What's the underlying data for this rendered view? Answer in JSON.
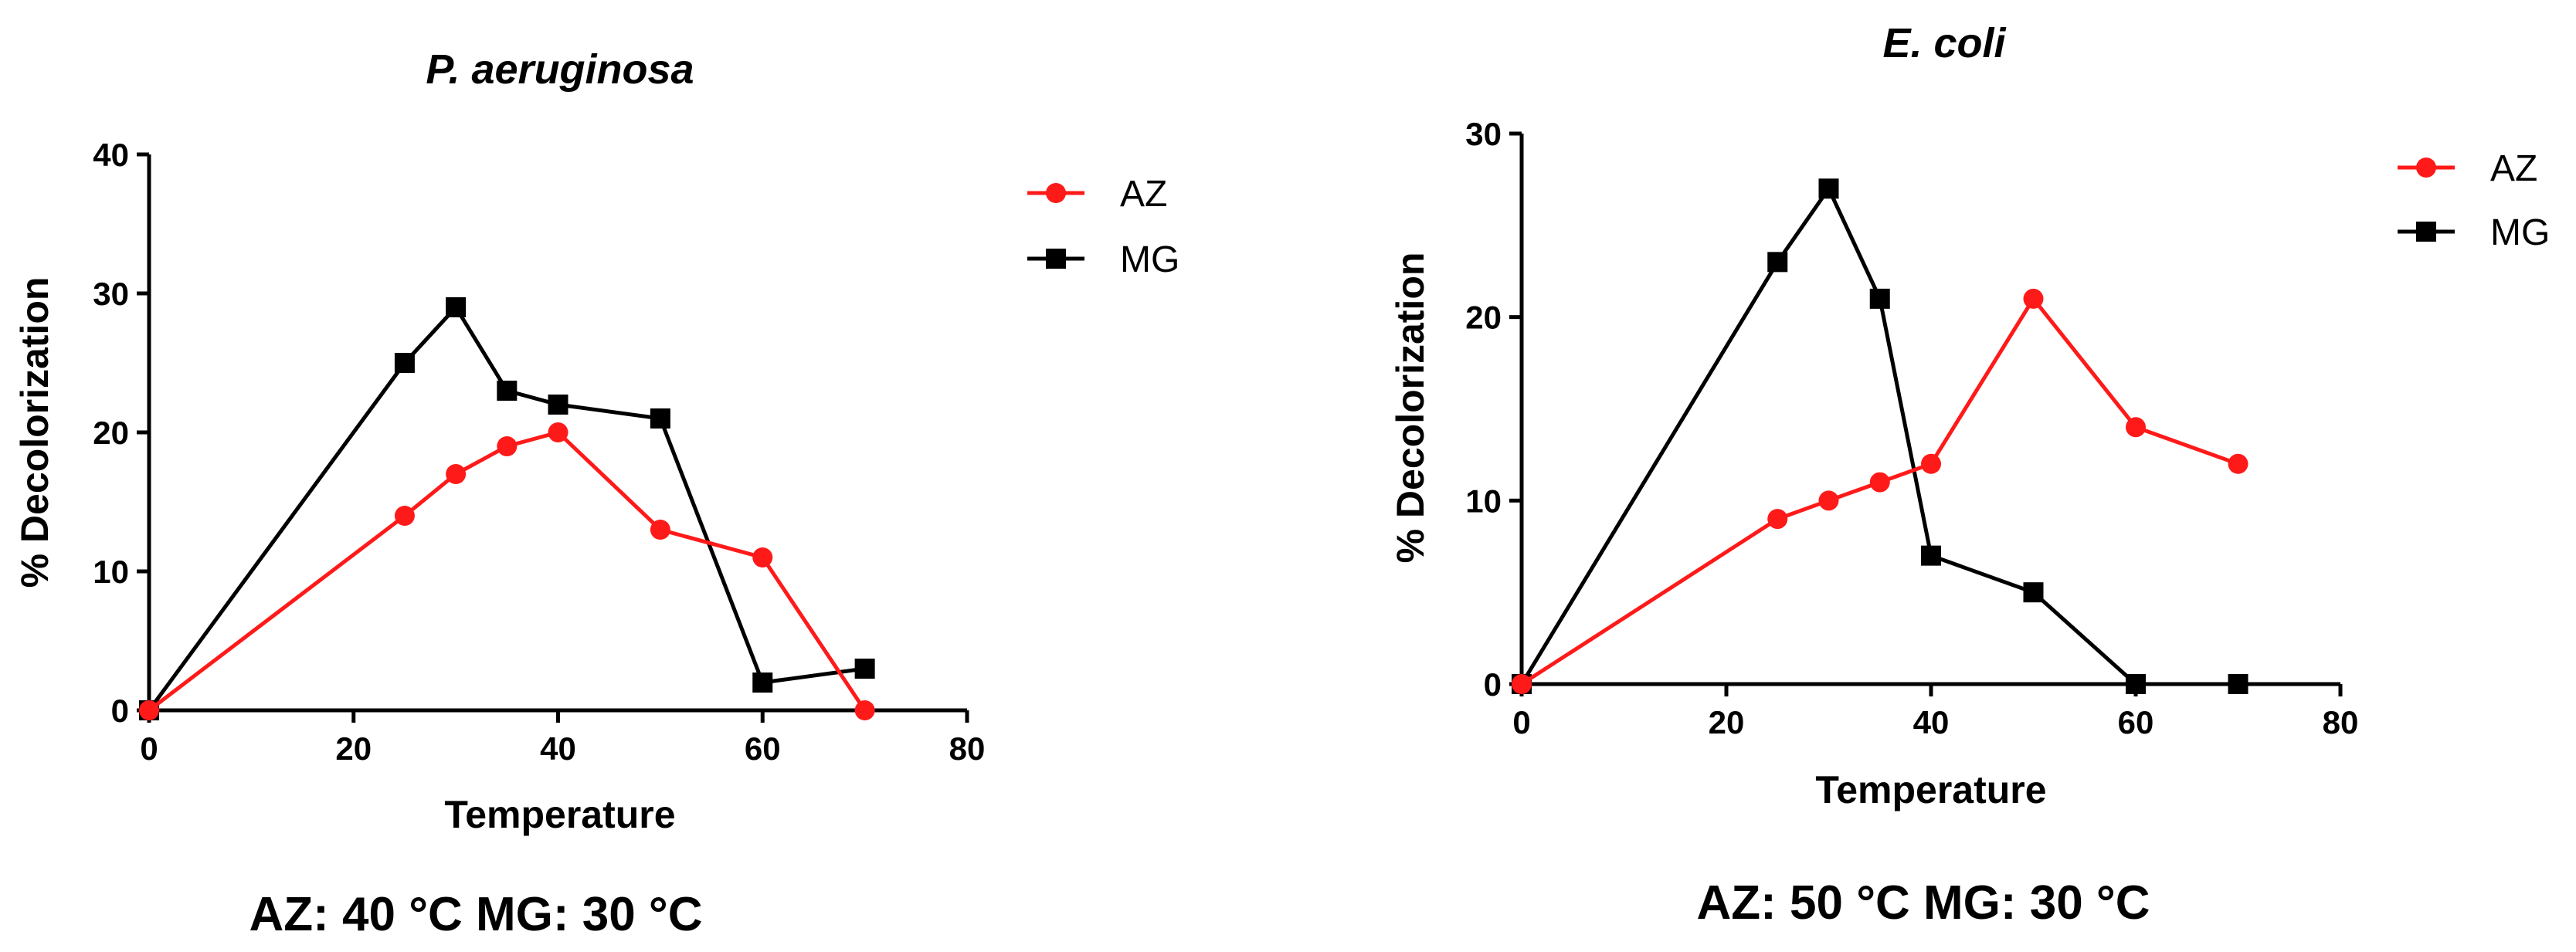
{
  "chart_data": [
    {
      "type": "line",
      "title": "P. aeruginosa",
      "xlabel": "Temperature",
      "ylabel": "% Decolorization",
      "xlim": [
        0,
        80
      ],
      "ylim": [
        0,
        40
      ],
      "xticks": [
        0,
        20,
        40,
        60,
        80
      ],
      "yticks": [
        0,
        10,
        20,
        30,
        40
      ],
      "grid": false,
      "legend_position": "top-right",
      "series": [
        {
          "name": "AZ",
          "color": "#ff1a1a",
          "marker": "circle",
          "x": [
            0,
            25,
            30,
            35,
            40,
            50,
            60,
            70
          ],
          "y": [
            0,
            14,
            17,
            19,
            20,
            13,
            11,
            0
          ]
        },
        {
          "name": "MG",
          "color": "#000000",
          "marker": "square",
          "x": [
            0,
            25,
            30,
            35,
            40,
            50,
            60,
            70
          ],
          "y": [
            0,
            25,
            29,
            23,
            22,
            21,
            2,
            3
          ]
        }
      ],
      "caption": "AZ: 40 °C MG: 30 °C"
    },
    {
      "type": "line",
      "title": "E. coli",
      "xlabel": "Temperature",
      "ylabel": "% Decolorization",
      "xlim": [
        0,
        80
      ],
      "ylim": [
        0,
        30
      ],
      "xticks": [
        0,
        20,
        40,
        60,
        80
      ],
      "yticks": [
        0,
        10,
        20,
        30
      ],
      "grid": false,
      "legend_position": "top-right",
      "series": [
        {
          "name": "AZ",
          "color": "#ff1a1a",
          "marker": "circle",
          "x": [
            0,
            25,
            30,
            35,
            40,
            50,
            60,
            70
          ],
          "y": [
            0,
            9,
            10,
            11,
            12,
            21,
            14,
            12
          ]
        },
        {
          "name": "MG",
          "color": "#000000",
          "marker": "square",
          "x": [
            0,
            25,
            30,
            35,
            40,
            50,
            60,
            70
          ],
          "y": [
            0,
            23,
            27,
            21,
            7,
            5,
            0,
            0
          ]
        }
      ],
      "caption": "AZ: 50 °C MG: 30 °C"
    }
  ]
}
